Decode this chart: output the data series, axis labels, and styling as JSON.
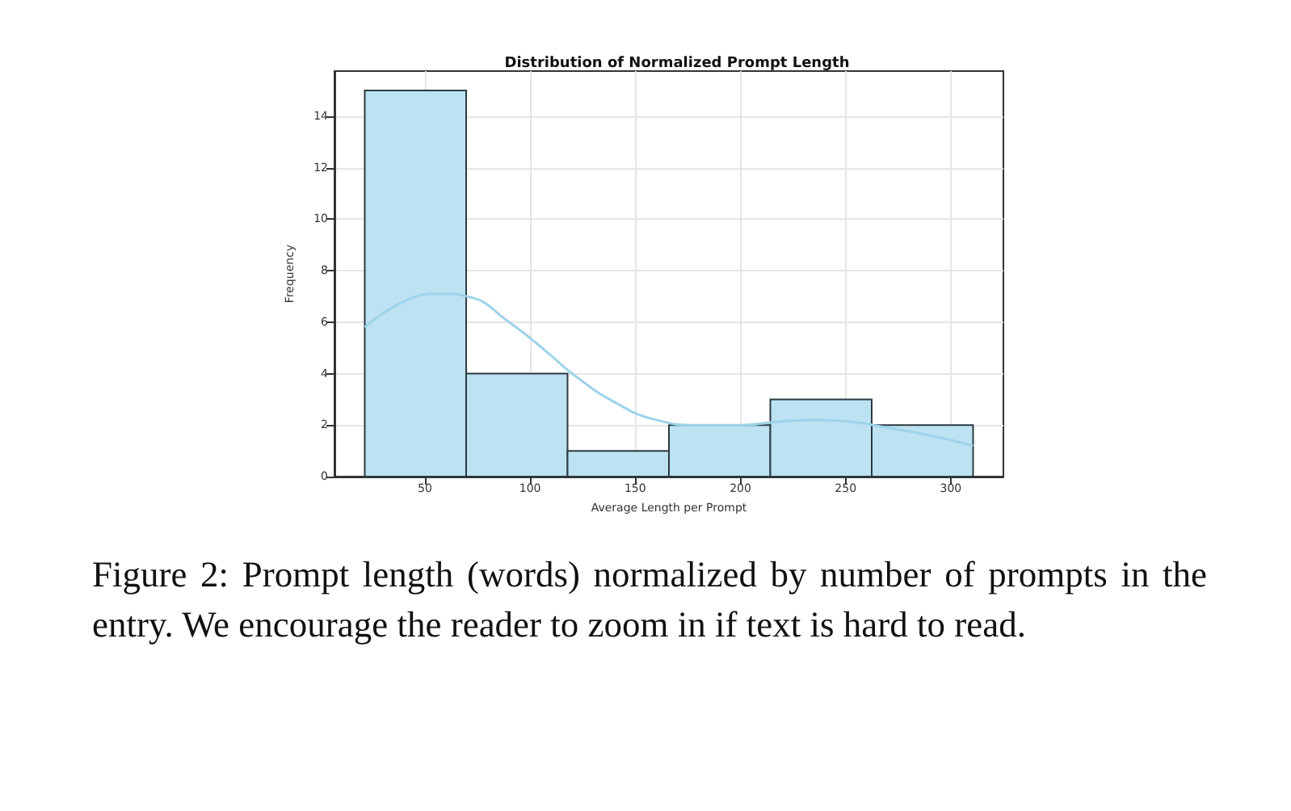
{
  "chart_data": {
    "type": "histogram",
    "title": "Distribution of Normalized Prompt Length",
    "xlabel": "Average Length per Prompt",
    "ylabel": "Frequency",
    "bins": [
      21.4,
      69.6,
      117.8,
      166,
      214.2,
      262.4,
      310.6
    ],
    "series": [
      {
        "color": "#bde2f1",
        "values": [
          15,
          4,
          1,
          2,
          3,
          2
        ]
      },
      {
        "type": "line",
        "color": "#9dd3ea",
        "x": [
          21.4,
          40,
          57,
          70,
          90,
          110,
          120,
          140,
          160,
          180,
          200,
          220,
          235,
          250,
          270,
          290,
          310.6
        ],
        "values": [
          5.8,
          6.8,
          7.1,
          7.0,
          6.0,
          4.7,
          4.0,
          2.9,
          2.2,
          2.0,
          2.0,
          2.15,
          2.2,
          2.15,
          1.9,
          1.6,
          1.2
        ]
      }
    ],
    "xlim": [
      7,
      325
    ],
    "xticks": [
      50,
      100,
      150,
      200,
      250,
      300
    ],
    "ylim": [
      0,
      15.75
    ],
    "yticks": [
      0,
      2,
      4,
      6,
      8,
      10,
      12,
      14
    ],
    "grid": true,
    "marker": "none",
    "annotations": [
      "Figure 2: Prompt length (words) normalized by number of prompts in the entry. We encourage the reader to zoom in if text is hard to read."
    ]
  }
}
